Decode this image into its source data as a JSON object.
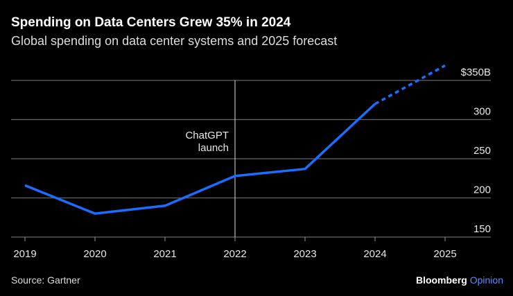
{
  "title": "Spending on Data Centers Grew 35% in 2024",
  "subtitle": "Global spending on data center systems and 2025 forecast",
  "source": "Source: Gartner",
  "brand": {
    "name": "Bloomberg",
    "section": "Opinion"
  },
  "colors": {
    "line": "#1a6dff",
    "background": "#000000",
    "grid": "#666666"
  },
  "chart_data": {
    "type": "line",
    "categories": [
      "2019",
      "2020",
      "2021",
      "2022",
      "2023",
      "2024",
      "2025"
    ],
    "values": [
      216,
      180,
      190,
      228,
      237,
      320,
      369
    ],
    "forecast_from": "2024",
    "forecast_style": "dotted",
    "ylim": [
      150,
      350
    ],
    "yticks": [
      150,
      200,
      250,
      300,
      350
    ],
    "ytick_labels": [
      "150",
      "200",
      "250",
      "300",
      "$350B"
    ],
    "yaxis_position": "right",
    "grid": true,
    "annotation": {
      "x": "2022",
      "lines": [
        "ChatGPT",
        "launch"
      ]
    }
  }
}
